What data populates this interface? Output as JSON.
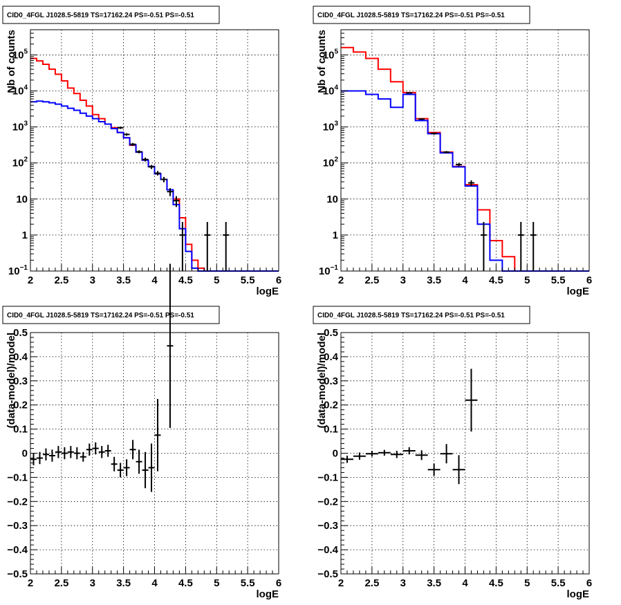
{
  "chart_data": [
    {
      "type": "line",
      "title": "CID0_4FGL J1028.5-5819 TS=17162.24 PS=-0.51 PS=-0.51",
      "xlabel": "logE",
      "ylabel": "Nb of counts",
      "xlim": [
        2,
        6
      ],
      "ylim": [
        0.1,
        500000
      ],
      "yscale": "log",
      "grid": true,
      "x_ticks": [
        "2",
        "2.5",
        "3",
        "3.5",
        "4",
        "4.5",
        "5",
        "5.5",
        "6"
      ],
      "y_ticks": [
        "10^{-1}",
        "1",
        "10",
        "10^{2}",
        "10^{3}",
        "10^{4}",
        "10^{5}"
      ],
      "bin_edges": [
        2.0,
        2.1,
        2.2,
        2.3,
        2.4,
        2.5,
        2.6,
        2.7,
        2.8,
        2.9,
        3.0,
        3.1,
        3.2,
        3.3,
        3.4,
        3.5,
        3.6,
        3.7,
        3.8,
        3.9,
        4.0,
        4.1,
        4.2,
        4.3,
        4.4,
        4.5,
        4.6,
        4.7,
        4.8,
        4.9,
        5.0,
        5.1,
        5.2,
        5.3,
        5.4,
        5.5,
        5.6,
        5.7,
        5.8,
        5.9,
        6.0
      ],
      "series": [
        {
          "color": "#ff0000",
          "style": "step",
          "values": [
            80000,
            68000,
            55000,
            40000,
            29000,
            19000,
            12000,
            8500,
            5500,
            3800,
            2200,
            1700,
            1200,
            950,
            700,
            500,
            310,
            200,
            120,
            80,
            50,
            35,
            18,
            10,
            3,
            0.55,
            0.2,
            0.12,
            0.1,
            0.1,
            0.1,
            0.1,
            0.1,
            0.1,
            0.1,
            0.1,
            0.1,
            0.1,
            0.1,
            0.1
          ]
        },
        {
          "color": "#0000ff",
          "style": "step",
          "values": [
            5000,
            5200,
            5000,
            4700,
            4300,
            3800,
            3300,
            2900,
            2400,
            2000,
            1700,
            1400,
            1200,
            900,
            700,
            500,
            320,
            200,
            120,
            80,
            50,
            35,
            18,
            7,
            1.5,
            0.35,
            0.12,
            0.1,
            0.1,
            0.1,
            0.1,
            0.1,
            0.1,
            0.1,
            0.1,
            0.1,
            0.1,
            0.1,
            0.1,
            0.1
          ]
        },
        {
          "color": "#000000",
          "style": "points",
          "points": [
            {
              "x": 3.45,
              "y": 950,
              "lo": 880,
              "hi": 1020
            },
            {
              "x": 3.55,
              "y": 620,
              "lo": 570,
              "hi": 670
            },
            {
              "x": 3.65,
              "y": 330,
              "lo": 300,
              "hi": 360
            },
            {
              "x": 3.75,
              "y": 205,
              "lo": 185,
              "hi": 225
            },
            {
              "x": 3.85,
              "y": 125,
              "lo": 110,
              "hi": 140
            },
            {
              "x": 3.95,
              "y": 78,
              "lo": 68,
              "hi": 88
            },
            {
              "x": 4.05,
              "y": 52,
              "lo": 45,
              "hi": 60
            },
            {
              "x": 4.15,
              "y": 35,
              "lo": 29,
              "hi": 41
            },
            {
              "x": 4.25,
              "y": 16,
              "lo": 12,
              "hi": 20
            },
            {
              "x": 4.35,
              "y": 9,
              "lo": 6,
              "hi": 12
            },
            {
              "x": 4.45,
              "y": 1,
              "lo": 0.1,
              "hi": 2.3
            },
            {
              "x": 4.85,
              "y": 1,
              "lo": 0.1,
              "hi": 2.3
            },
            {
              "x": 5.15,
              "y": 1,
              "lo": 0.1,
              "hi": 2.3
            }
          ]
        }
      ]
    },
    {
      "type": "line",
      "title": "CID0_4FGL J1028.5-5819 TS=17162.24 PS=-0.51 PS=-0.51",
      "xlabel": "logE",
      "ylabel": "Nb of counts",
      "xlim": [
        2,
        6
      ],
      "ylim": [
        0.1,
        500000
      ],
      "yscale": "log",
      "grid": true,
      "x_ticks": [
        "2",
        "2.5",
        "3",
        "3.5",
        "4",
        "4.5",
        "5",
        "5.5",
        "6"
      ],
      "y_ticks": [
        "10^{-1}",
        "1",
        "10",
        "10^{2}",
        "10^{3}",
        "10^{4}",
        "10^{5}"
      ],
      "bin_edges": [
        2.0,
        2.2,
        2.4,
        2.6,
        2.8,
        3.0,
        3.2,
        3.4,
        3.6,
        3.8,
        4.0,
        4.2,
        4.4,
        4.6,
        4.8,
        5.0,
        5.2,
        5.4,
        5.6,
        5.8,
        6.0
      ],
      "series": [
        {
          "color": "#ff0000",
          "style": "step",
          "values": [
            160000,
            120000,
            80000,
            40000,
            18000,
            9000,
            1700,
            700,
            200,
            80,
            25,
            5,
            0.7,
            0.25,
            0.1,
            0.1,
            0.1,
            0.1,
            0.1,
            0.1
          ]
        },
        {
          "color": "#0000ff",
          "style": "step",
          "values": [
            10000,
            10000,
            8000,
            6000,
            3500,
            8000,
            1500,
            650,
            190,
            78,
            23,
            2,
            0.2,
            0.1,
            0.1,
            0.1,
            0.1,
            0.1,
            0.1,
            0.1
          ]
        },
        {
          "color": "#000000",
          "style": "points",
          "points": [
            {
              "x": 3.1,
              "y": 8800,
              "lo": 8600,
              "hi": 9000
            },
            {
              "x": 3.3,
              "y": 1650,
              "lo": 1570,
              "hi": 1730
            },
            {
              "x": 3.5,
              "y": 660,
              "lo": 610,
              "hi": 710
            },
            {
              "x": 3.7,
              "y": 200,
              "lo": 185,
              "hi": 215
            },
            {
              "x": 3.9,
              "y": 90,
              "lo": 80,
              "hi": 100
            },
            {
              "x": 4.1,
              "y": 28,
              "lo": 23,
              "hi": 33
            },
            {
              "x": 4.3,
              "y": 1,
              "lo": 0.1,
              "hi": 2.3
            },
            {
              "x": 4.9,
              "y": 1,
              "lo": 0.1,
              "hi": 2.3
            },
            {
              "x": 5.1,
              "y": 1,
              "lo": 0.1,
              "hi": 2.3
            }
          ]
        }
      ]
    },
    {
      "type": "scatter",
      "title": "CID0_4FGL J1028.5-5819 TS=17162.24 PS=-0.51 PS=-0.51",
      "xlabel": "logE",
      "ylabel": "(data-model)/model",
      "xlim": [
        2,
        6
      ],
      "ylim": [
        -0.5,
        0.5
      ],
      "grid": true,
      "x_ticks": [
        "2",
        "2.5",
        "3",
        "3.5",
        "4",
        "4.5",
        "5",
        "5.5",
        "6"
      ],
      "y_ticks": [
        "−0.5",
        "−0.4",
        "−0.3",
        "−0.2",
        "−0.1",
        "0",
        "0.1",
        "0.2",
        "0.3",
        "0.4",
        "0.5"
      ],
      "series": [
        {
          "color": "#000000",
          "xerr": 0.05,
          "points": [
            {
              "x": 2.05,
              "y": -0.025,
              "err": 0.025
            },
            {
              "x": 2.15,
              "y": -0.02,
              "err": 0.025
            },
            {
              "x": 2.25,
              "y": -0.005,
              "err": 0.025
            },
            {
              "x": 2.35,
              "y": -0.01,
              "err": 0.025
            },
            {
              "x": 2.45,
              "y": 0.005,
              "err": 0.025
            },
            {
              "x": 2.55,
              "y": 0.0,
              "err": 0.025
            },
            {
              "x": 2.65,
              "y": 0.005,
              "err": 0.025
            },
            {
              "x": 2.75,
              "y": 0.0,
              "err": 0.025
            },
            {
              "x": 2.85,
              "y": -0.015,
              "err": 0.02
            },
            {
              "x": 2.95,
              "y": 0.015,
              "err": 0.025
            },
            {
              "x": 3.05,
              "y": 0.02,
              "err": 0.025
            },
            {
              "x": 3.15,
              "y": 0.005,
              "err": 0.025
            },
            {
              "x": 3.25,
              "y": 0.01,
              "err": 0.025
            },
            {
              "x": 3.35,
              "y": -0.045,
              "err": 0.03
            },
            {
              "x": 3.45,
              "y": -0.07,
              "err": 0.03
            },
            {
              "x": 3.55,
              "y": -0.06,
              "err": 0.035
            },
            {
              "x": 3.65,
              "y": 0.015,
              "err": 0.04
            },
            {
              "x": 3.75,
              "y": -0.035,
              "err": 0.05
            },
            {
              "x": 3.85,
              "y": -0.07,
              "err": 0.075
            },
            {
              "x": 3.95,
              "y": -0.06,
              "err": 0.1
            },
            {
              "x": 4.05,
              "y": 0.075,
              "err": 0.15
            },
            {
              "x": 4.25,
              "y": 0.445,
              "err": 0.34
            }
          ]
        }
      ]
    },
    {
      "type": "scatter",
      "title": "CID0_4FGL J1028.5-5819 TS=17162.24 PS=-0.51 PS=-0.51",
      "xlabel": "logE",
      "ylabel": "(data-model)/model",
      "xlim": [
        2,
        6
      ],
      "ylim": [
        -0.5,
        0.5
      ],
      "grid": true,
      "x_ticks": [
        "2",
        "2.5",
        "3",
        "3.5",
        "4",
        "4.5",
        "5",
        "5.5",
        "6"
      ],
      "y_ticks": [
        "−0.5",
        "−0.4",
        "−0.3",
        "−0.2",
        "−0.1",
        "0",
        "0.1",
        "0.2",
        "0.3",
        "0.4",
        "0.5"
      ],
      "series": [
        {
          "color": "#000000",
          "xerr": 0.1,
          "points": [
            {
              "x": 2.1,
              "y": -0.025,
              "err": 0.015
            },
            {
              "x": 2.3,
              "y": -0.012,
              "err": 0.015
            },
            {
              "x": 2.5,
              "y": -0.002,
              "err": 0.012
            },
            {
              "x": 2.7,
              "y": 0.002,
              "err": 0.012
            },
            {
              "x": 2.9,
              "y": -0.005,
              "err": 0.015
            },
            {
              "x": 3.1,
              "y": 0.01,
              "err": 0.015
            },
            {
              "x": 3.3,
              "y": -0.008,
              "err": 0.02
            },
            {
              "x": 3.5,
              "y": -0.068,
              "err": 0.025
            },
            {
              "x": 3.7,
              "y": -0.002,
              "err": 0.04
            },
            {
              "x": 3.9,
              "y": -0.068,
              "err": 0.06
            },
            {
              "x": 4.1,
              "y": 0.22,
              "err": 0.13
            }
          ]
        }
      ]
    }
  ]
}
